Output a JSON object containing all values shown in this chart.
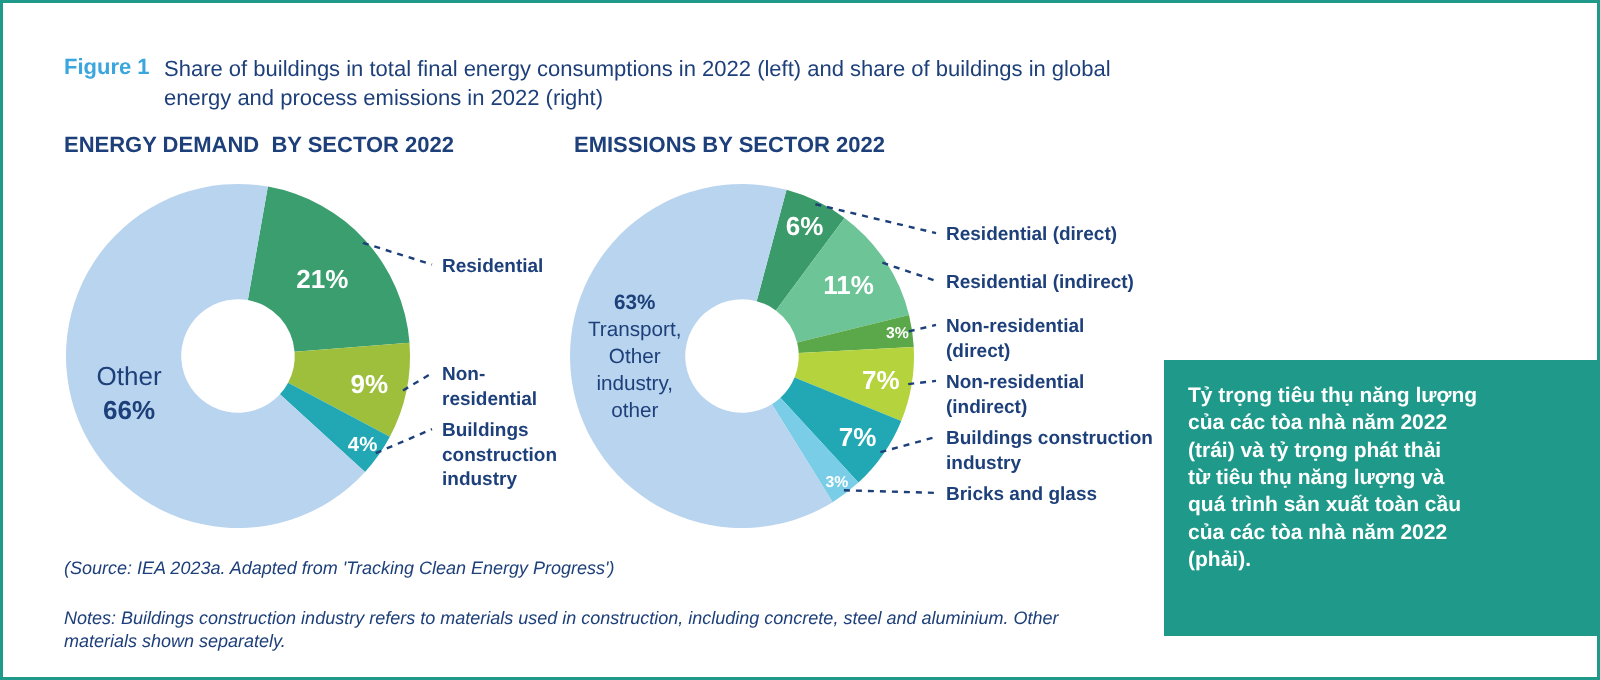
{
  "chart_data": [
    {
      "type": "donut",
      "title": "ENERGY DEMAND  BY SECTOR 2022",
      "categories": [
        "Residential",
        "Non-residential",
        "Buildings construction industry",
        "Other"
      ],
      "values": [
        21,
        9,
        4,
        66
      ],
      "colors": [
        "#3a9e6e",
        "#9dbf3c",
        "#22a8b4",
        "#b8d4ee"
      ],
      "value_labels": [
        "21%",
        "9%",
        "4%",
        "66%"
      ],
      "annotations": [
        "Figure 1",
        "Share of buildings in total final energy consumptions in 2022 (left) and share of buildings in global energy and process emissions in 2022 (right)",
        "(Source: IEA 2023a. Adapted from 'Tracking Clean Energy Progress')",
        "Notes: Buildings construction industry refers to materials used in construction, including concrete, steel and aluminium. Other materials shown separately."
      ]
    },
    {
      "type": "donut",
      "title": "EMISSIONS BY SECTOR 2022",
      "categories": [
        "Residential (direct)",
        "Residential (indirect)",
        "Non-residential (direct)",
        "Non-residential (indirect)",
        "Buildings construction industry",
        "Bricks and glass",
        "Transport, Other industry, other"
      ],
      "values": [
        6,
        11,
        3,
        7,
        7,
        3,
        63
      ],
      "colors": [
        "#3a9a6a",
        "#6cc497",
        "#5aa84a",
        "#b5d33c",
        "#22a8b4",
        "#79cde6",
        "#b8d4ee"
      ],
      "value_labels": [
        "6%",
        "11%",
        "3%",
        "7%",
        "7%",
        "3%",
        "63%"
      ]
    },
    {
      "type": "other",
      "annotations": [
        "Tỷ trọng tiêu thụ năng lượng của các tòa nhà năm 2022 (trái) và tỷ trọng phát thải từ tiêu thụ năng lượng và quá trình sản xuất toàn cầu của các tòa nhà năm 2022 (phải)."
      ]
    }
  ]
}
